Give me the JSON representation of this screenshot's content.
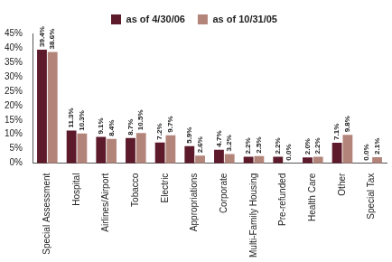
{
  "chart_data": {
    "type": "bar",
    "categories": [
      "Special Assessment",
      "Hospital",
      "Airlines/Airport",
      "Tobacco",
      "Electric",
      "Appropriations",
      "Corporate",
      "Multi-Family Housing",
      "Pre-refunded",
      "Health Care",
      "Other",
      "Special Tax"
    ],
    "series": [
      {
        "name": "as of 4/30/06",
        "color": "#5c1a2b",
        "values": [
          39.4,
          11.3,
          9.1,
          8.7,
          7.2,
          5.9,
          4.7,
          2.2,
          2.2,
          2.0,
          7.1,
          0.0
        ],
        "value_labels": [
          "39.4%",
          "11.3%",
          "9.1%",
          "8.7%",
          "7.2%",
          "5.9%",
          "4.7%",
          "2.2%",
          "2.2%",
          "2.0%",
          "7.1%",
          "0.0%"
        ]
      },
      {
        "name": "as of 10/31/05",
        "color": "#b3857a",
        "values": [
          38.6,
          10.3,
          8.4,
          10.5,
          9.7,
          2.6,
          3.2,
          2.5,
          0.0,
          2.2,
          9.8,
          2.1
        ],
        "value_labels": [
          "38.6%",
          "10.3%",
          "8.4%",
          "10.5%",
          "9.7%",
          "2.6%",
          "3.2%",
          "2.5%",
          "0.0%",
          "2.2%",
          "9.8%",
          "2.1%"
        ]
      }
    ],
    "ylim": [
      0,
      45
    ],
    "yticks": [
      {
        "value": 0,
        "label": "0%"
      },
      {
        "value": 5,
        "label": "5%"
      },
      {
        "value": 10,
        "label": "10%"
      },
      {
        "value": 15,
        "label": "15%"
      },
      {
        "value": 20,
        "label": "20%"
      },
      {
        "value": 25,
        "label": "25%"
      },
      {
        "value": 30,
        "label": "30%"
      },
      {
        "value": 35,
        "label": "35%"
      },
      {
        "value": 40,
        "label": "40%"
      },
      {
        "value": 45,
        "label": "45%"
      }
    ],
    "grid": false,
    "legend": "top",
    "data_labels": true
  }
}
